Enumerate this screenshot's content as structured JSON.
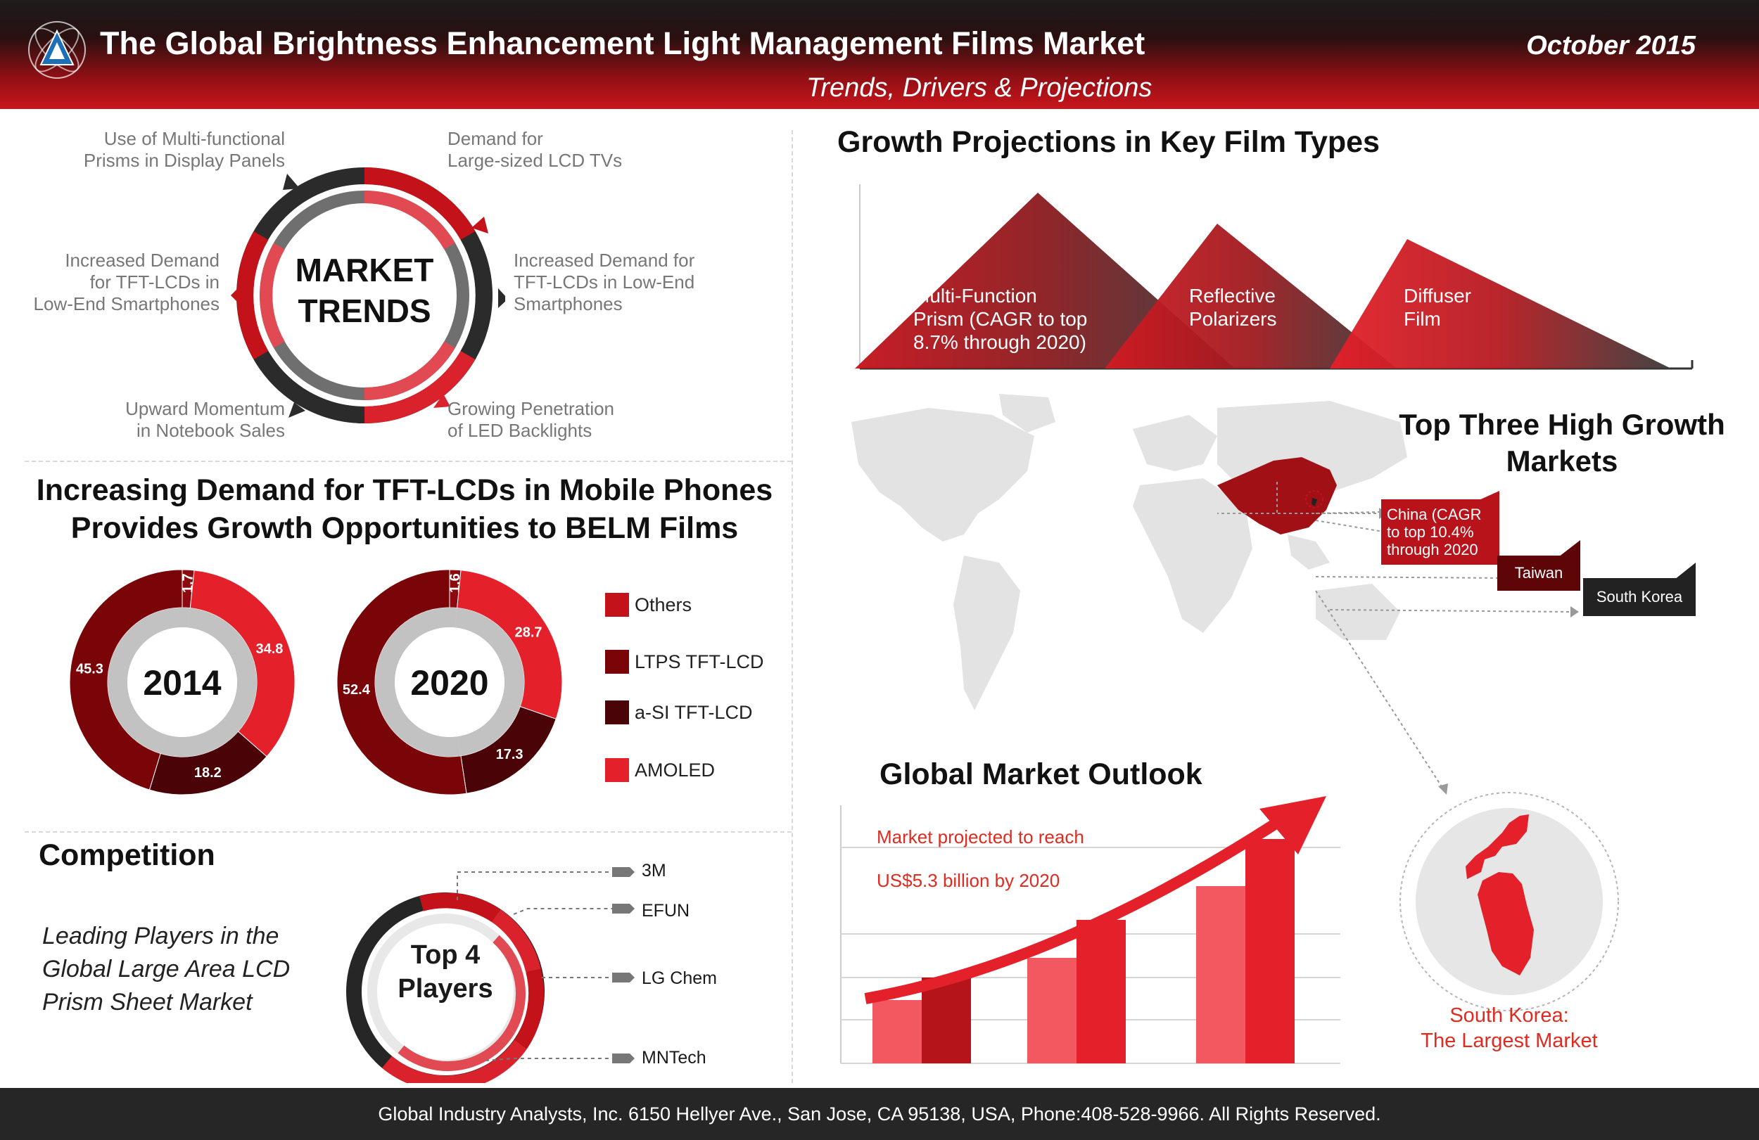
{
  "header": {
    "title": "The Global Brightness Enhancement Light Management Films Market",
    "date": "October 2015",
    "subtitle": "Trends, Drivers & Projections"
  },
  "market_trends": {
    "center_line1": "MARKET",
    "center_line2": "TRENDS",
    "items": [
      {
        "line1": "Use of Multi-functional",
        "line2": "Prisms in Display Panels",
        "line3": ""
      },
      {
        "line1": "Demand for",
        "line2": "Large-sized LCD TVs",
        "line3": ""
      },
      {
        "line1": "Increased Demand for",
        "line2": "TFT-LCDs in Low-End",
        "line3": "Smartphones"
      },
      {
        "line1": "Growing Penetration",
        "line2": "of LED Backlights",
        "line3": ""
      },
      {
        "line1": "Upward Momentum",
        "line2": "in Notebook Sales",
        "line3": ""
      },
      {
        "line1": "Increased Demand",
        "line2": "for TFT-LCDs in",
        "line3": "Low-End Smartphones"
      }
    ]
  },
  "mobile": {
    "title_line1": "Increasing Demand for TFT-LCDs in Mobile Phones",
    "title_line2": "Provides Growth Opportunities to BELM Films"
  },
  "chart_data": [
    {
      "type": "pie",
      "title": "2014",
      "labels": [
        "Others",
        "AMOLED",
        "a-SI TFT-LCD",
        "LTPS TFT-LCD"
      ],
      "values": [
        1.7,
        34.8,
        18.2,
        45.3
      ]
    },
    {
      "type": "pie",
      "title": "2020",
      "labels": [
        "Others",
        "AMOLED",
        "a-SI TFT-LCD",
        "LTPS TFT-LCD"
      ],
      "values": [
        1.6,
        28.7,
        17.3,
        52.4
      ]
    }
  ],
  "legend": [
    {
      "label": "Others",
      "color": "#c4121a"
    },
    {
      "label": "LTPS TFT-LCD",
      "color": "#7a0508"
    },
    {
      "label": "a-SI TFT-LCD",
      "color": "#4a0306"
    },
    {
      "label": "AMOLED",
      "color": "#e4202a"
    }
  ],
  "competition": {
    "title": "Competition",
    "desc_line1": "Leading Players in the",
    "desc_line2": "Global Large Area LCD",
    "desc_line3": "Prism Sheet Market",
    "center_line1": "Top 4",
    "center_line2": "Players",
    "players": [
      "3M",
      "EFUN",
      "LG Chem",
      "MNTech"
    ]
  },
  "growth": {
    "title": "Growth Projections  in Key Film Types",
    "films": [
      {
        "line1": "Multi-Function",
        "line2": "Prism (CAGR to top",
        "line3": "8.7% through 2020)"
      },
      {
        "line1": "Reflective",
        "line2": "Polarizers",
        "line3": ""
      },
      {
        "line1": "Diffuser",
        "line2": "Film",
        "line3": ""
      }
    ]
  },
  "markets": {
    "title_line1": "Top Three High Growth",
    "title_line2": "Markets",
    "china_line1": "China (CAGR",
    "china_line2": "to top 10.4%",
    "china_line3": "through 2020",
    "taiwan": "Taiwan",
    "korea": "South Korea",
    "largest_line1": "South Korea:",
    "largest_line2": "The Largest Market"
  },
  "outlook": {
    "title": "Global Market Outlook",
    "note_line1": "Market projected to reach",
    "note_line2": "US$5.3 billion by 2020"
  },
  "footer": {
    "text": "Global Industry Analysts, Inc. 6150 Hellyer Ave., San Jose, CA 95138, USA, Phone:408-528-9966. All Rights Reserved."
  },
  "colors": {
    "accent": "#e4202a",
    "dark_red": "#7a0508",
    "ring_dark": "#2b2b2b"
  }
}
